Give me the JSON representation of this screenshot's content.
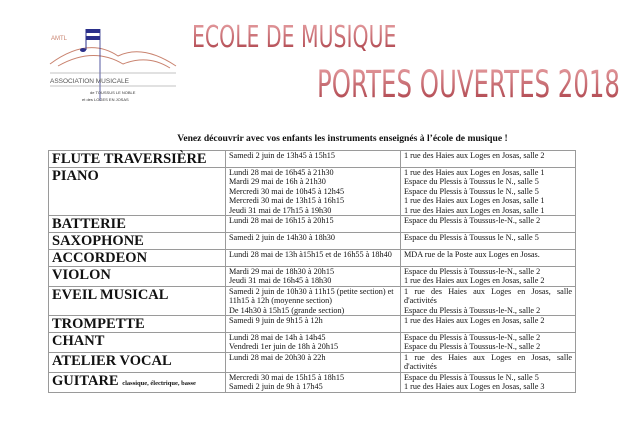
{
  "logo": {
    "top_text": "AMTL",
    "name": "ASSOCIATION MUSICALE",
    "line1": "de TOUSSUS LE NOBLE",
    "line2": "et des LOGES EN JOSAS",
    "colors": {
      "arc": "#c9836f",
      "note": "#2a2f8a"
    }
  },
  "header": {
    "title_line1": "ECOLE DE MUSIQUE",
    "title_line2": "PORTES OUVERTES 2018",
    "title_color": "#b5545a"
  },
  "subtitle": "Venez découvrir avec vos enfants les instruments enseignés à l’école de musique !",
  "rows": [
    {
      "name": "FLUTE TRAVERSIÈRE",
      "when": [
        "Samedi 2 juin de 13h45 à 15h15"
      ],
      "where": [
        "1 rue des Haies aux Loges en Josas, salle 2"
      ]
    },
    {
      "name": "PIANO",
      "when": [
        "Lundi 28 mai de 16h45 à 21h30",
        "Mardi 29 mai de 16h à 21h30",
        "Mercredi 30 mai de 10h45 à 12h45",
        "Mercredi 30 mai de 13h15 à 16h15",
        "Jeudi 31 mai de 17h15 à 19h30"
      ],
      "where": [
        "1 rue des Haies aux Loges en Josas, salle 1",
        "Espace du Plessis à Toussus le N., salle 5",
        "Espace du Plessis à Toussus le N., salle 5",
        "1 rue des Haies aux Loges en Josas, salle 1",
        "1 rue des Haies aux Loges en Josas, salle 1"
      ]
    },
    {
      "name": "BATTERIE",
      "when": [
        "Lundi 28 mai de 16h15 à 20h15"
      ],
      "where": [
        "Espace du Plessis à Toussus-le-N., salle 2"
      ]
    },
    {
      "name": "SAXOPHONE",
      "when": [
        "Samedi 2 juin de 14h30 à 18h30"
      ],
      "where": [
        "Espace du Plessis à Toussus le N., salle 5"
      ]
    },
    {
      "name": "ACCORDEON",
      "when": [
        "Lundi 28 mai de 13h à15h15 et de 16h55 à 18h40"
      ],
      "where": [
        "MDA rue de la Poste aux Loges en Josas."
      ]
    },
    {
      "name": "VIOLON",
      "when": [
        "Mardi 29 mai de 18h30 à 20h15",
        "Jeudi 31 mai de 16h45 à 18h30"
      ],
      "where": [
        "Espace du Plessis à Toussus-le-N., salle 2",
        "1 rue des Haies aux Loges en Josas, salle 2"
      ]
    },
    {
      "name": "EVEIL MUSICAL",
      "when": [
        "Samedi 2 juin de 10h30 à 11h15 (petite section) et 11h15 à 12h (moyenne section)",
        "De 14h30 à 15h15 (grande section)"
      ],
      "where": [
        "1 rue des Haies aux Loges en Josas, salle d'activités",
        "Espace du Plessis à Toussus-le-N., salle 2"
      ]
    },
    {
      "name": "TROMPETTE",
      "when": [
        "Samedi 9 juin de 9h15 à 12h"
      ],
      "where": [
        "1 rue des Haies aux Loges en Josas, salle 2"
      ]
    },
    {
      "name": "CHANT",
      "when": [
        "Lundi 28 mai de 14h à 14h45",
        "Vendredi 1er juin de 18h à 20h15"
      ],
      "where": [
        "Espace du Plessis à Toussus-le-N., salle 2",
        "Espace du Plessis à Toussus-le-N., salle 2"
      ]
    },
    {
      "name": "ATELIER VOCAL",
      "when": [
        "Lundi 28 mai de 20h30 à 22h"
      ],
      "where": [
        "1 rue des Haies aux Loges en Josas, salle d'activités"
      ]
    },
    {
      "name": "GUITARE",
      "name_note": "classique,  électrique, basse",
      "when": [
        "Mercredi 30 mai de 15h15 à 18h15",
        "Samedi 2 juin de 9h à 17h45"
      ],
      "where": [
        "Espace du Plessis à Toussus le N., salle 5",
        "1 rue des Haies aux Loges en Josas, salle 3"
      ]
    }
  ]
}
